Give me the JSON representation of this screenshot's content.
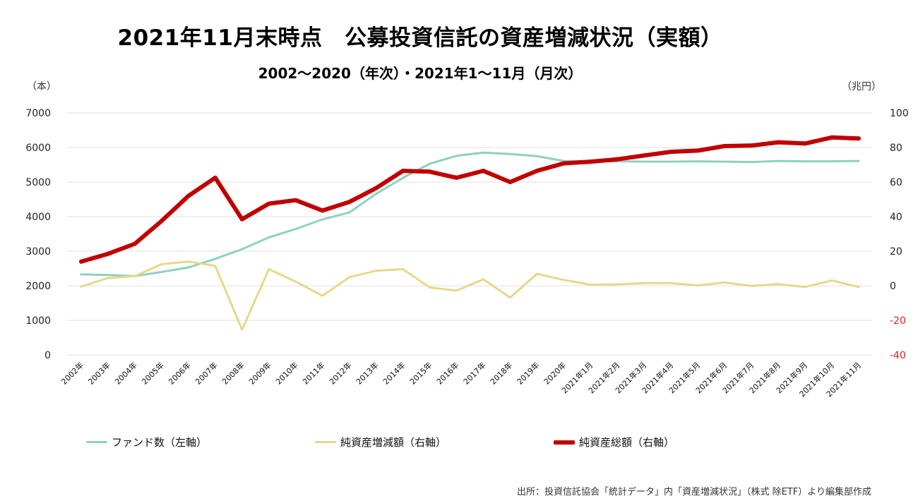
{
  "title": "2021年11月末時点　公募投資信託の資産増減状況（実額）",
  "subtitle": "2002〜2020（年次）・2021年1〜11月（月次）",
  "source": "出所：投資信託協会「統計データ」内「資産増減状況」（株式 除ETF）より編集部作成",
  "chart_data": {
    "type": "line",
    "left_axis": {
      "unit": "（本）",
      "range": [
        0,
        7000
      ],
      "ticks": [
        0,
        1000,
        2000,
        3000,
        4000,
        5000,
        6000,
        7000
      ]
    },
    "right_axis": {
      "unit": "（兆円）",
      "range": [
        -40,
        100
      ],
      "ticks": [
        -40,
        -20,
        0,
        20,
        40,
        60,
        80,
        100
      ]
    },
    "categories": [
      "2002年",
      "2003年",
      "2004年",
      "2005年",
      "2006年",
      "2007年",
      "2008年",
      "2009年",
      "2010年",
      "2011年",
      "2012年",
      "2013年",
      "2014年",
      "2015年",
      "2016年",
      "2017年",
      "2018年",
      "2019年",
      "2020年",
      "2021年1月",
      "2021年2月",
      "2021年3月",
      "2021年4月",
      "2021年5月",
      "2021年6月",
      "2021年7月",
      "2021年8月",
      "2021年9月",
      "2021年10月",
      "2021年11月"
    ],
    "series": [
      {
        "name": "ファンド数（左軸）",
        "axis": "left",
        "color": "#8ed1c0",
        "width": 3,
        "values": [
          2330,
          2310,
          2280,
          2400,
          2530,
          2780,
          3060,
          3400,
          3640,
          3920,
          4120,
          4660,
          5120,
          5530,
          5760,
          5850,
          5810,
          5750,
          5610,
          5600,
          5600,
          5590,
          5590,
          5600,
          5590,
          5580,
          5610,
          5600,
          5600,
          5610
        ]
      },
      {
        "name": "純資産増減額（右軸）",
        "axis": "right",
        "color": "#e6d88a",
        "width": 3,
        "values": [
          -0.5,
          4.5,
          5.6,
          12.5,
          14,
          11.5,
          -25.4,
          9.6,
          2.4,
          -5.8,
          5,
          8.7,
          9.6,
          -1,
          -2.8,
          3.7,
          -6.8,
          6.9,
          3.4,
          0.6,
          0.8,
          1.5,
          1.5,
          0.2,
          1.9,
          -0.1,
          1,
          -0.7,
          3.1,
          -0.7
        ]
      },
      {
        "name": "純資産総額（右軸）",
        "axis": "right",
        "color": "#c00000",
        "width": 6,
        "values": [
          14,
          18.5,
          24.3,
          37.5,
          52,
          62.5,
          38.5,
          47.5,
          49.5,
          43.5,
          48.5,
          56.5,
          66.5,
          66,
          62.5,
          66.5,
          60,
          66.5,
          70.8,
          71.8,
          73.2,
          75.4,
          77.5,
          78.2,
          80.8,
          81.1,
          83,
          82.3,
          85.8,
          85.2
        ]
      }
    ]
  }
}
